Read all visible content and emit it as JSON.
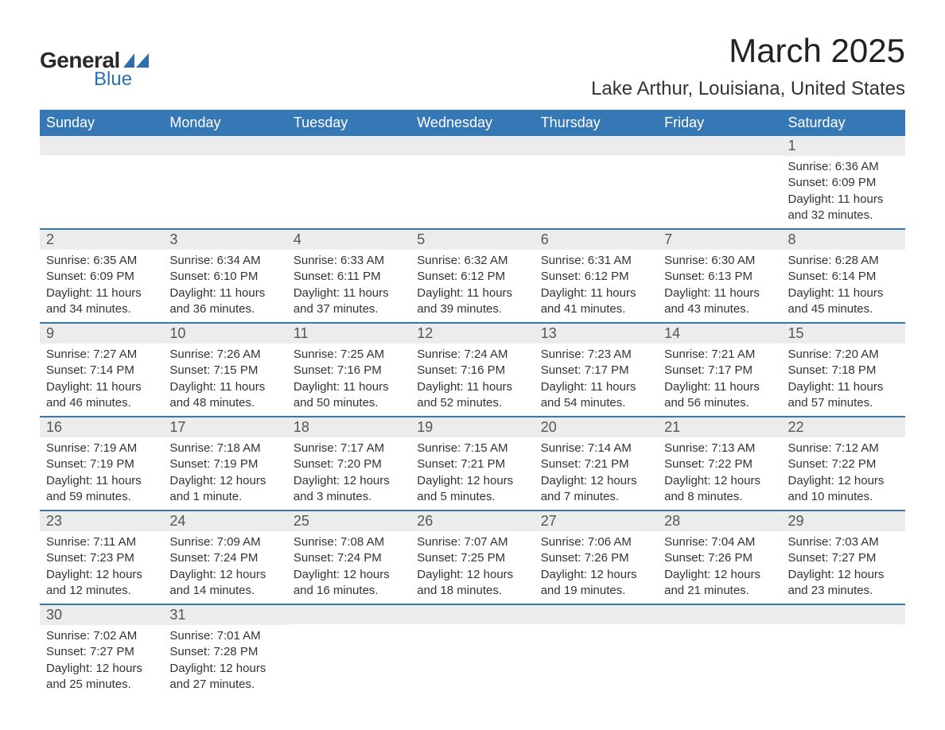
{
  "logo": {
    "text_general": "General",
    "text_blue": "Blue",
    "accent_color": "#2c6fb0"
  },
  "header": {
    "month_title": "March 2025",
    "location": "Lake Arthur, Louisiana, United States"
  },
  "styling": {
    "header_bg": "#3678b5",
    "header_text": "#ffffff",
    "daynum_bg": "#ececec",
    "row_divider": "#3678b5",
    "body_text": "#333333",
    "font_family": "Arial",
    "month_title_fontsize": 42,
    "location_fontsize": 24,
    "weekday_fontsize": 18,
    "cell_fontsize": 15
  },
  "weekdays": [
    "Sunday",
    "Monday",
    "Tuesday",
    "Wednesday",
    "Thursday",
    "Friday",
    "Saturday"
  ],
  "weeks": [
    [
      null,
      null,
      null,
      null,
      null,
      null,
      {
        "n": "1",
        "sunrise": "6:36 AM",
        "sunset": "6:09 PM",
        "daylight": "11 hours and 32 minutes."
      }
    ],
    [
      {
        "n": "2",
        "sunrise": "6:35 AM",
        "sunset": "6:09 PM",
        "daylight": "11 hours and 34 minutes."
      },
      {
        "n": "3",
        "sunrise": "6:34 AM",
        "sunset": "6:10 PM",
        "daylight": "11 hours and 36 minutes."
      },
      {
        "n": "4",
        "sunrise": "6:33 AM",
        "sunset": "6:11 PM",
        "daylight": "11 hours and 37 minutes."
      },
      {
        "n": "5",
        "sunrise": "6:32 AM",
        "sunset": "6:12 PM",
        "daylight": "11 hours and 39 minutes."
      },
      {
        "n": "6",
        "sunrise": "6:31 AM",
        "sunset": "6:12 PM",
        "daylight": "11 hours and 41 minutes."
      },
      {
        "n": "7",
        "sunrise": "6:30 AM",
        "sunset": "6:13 PM",
        "daylight": "11 hours and 43 minutes."
      },
      {
        "n": "8",
        "sunrise": "6:28 AM",
        "sunset": "6:14 PM",
        "daylight": "11 hours and 45 minutes."
      }
    ],
    [
      {
        "n": "9",
        "sunrise": "7:27 AM",
        "sunset": "7:14 PM",
        "daylight": "11 hours and 46 minutes."
      },
      {
        "n": "10",
        "sunrise": "7:26 AM",
        "sunset": "7:15 PM",
        "daylight": "11 hours and 48 minutes."
      },
      {
        "n": "11",
        "sunrise": "7:25 AM",
        "sunset": "7:16 PM",
        "daylight": "11 hours and 50 minutes."
      },
      {
        "n": "12",
        "sunrise": "7:24 AM",
        "sunset": "7:16 PM",
        "daylight": "11 hours and 52 minutes."
      },
      {
        "n": "13",
        "sunrise": "7:23 AM",
        "sunset": "7:17 PM",
        "daylight": "11 hours and 54 minutes."
      },
      {
        "n": "14",
        "sunrise": "7:21 AM",
        "sunset": "7:17 PM",
        "daylight": "11 hours and 56 minutes."
      },
      {
        "n": "15",
        "sunrise": "7:20 AM",
        "sunset": "7:18 PM",
        "daylight": "11 hours and 57 minutes."
      }
    ],
    [
      {
        "n": "16",
        "sunrise": "7:19 AM",
        "sunset": "7:19 PM",
        "daylight": "11 hours and 59 minutes."
      },
      {
        "n": "17",
        "sunrise": "7:18 AM",
        "sunset": "7:19 PM",
        "daylight": "12 hours and 1 minute."
      },
      {
        "n": "18",
        "sunrise": "7:17 AM",
        "sunset": "7:20 PM",
        "daylight": "12 hours and 3 minutes."
      },
      {
        "n": "19",
        "sunrise": "7:15 AM",
        "sunset": "7:21 PM",
        "daylight": "12 hours and 5 minutes."
      },
      {
        "n": "20",
        "sunrise": "7:14 AM",
        "sunset": "7:21 PM",
        "daylight": "12 hours and 7 minutes."
      },
      {
        "n": "21",
        "sunrise": "7:13 AM",
        "sunset": "7:22 PM",
        "daylight": "12 hours and 8 minutes."
      },
      {
        "n": "22",
        "sunrise": "7:12 AM",
        "sunset": "7:22 PM",
        "daylight": "12 hours and 10 minutes."
      }
    ],
    [
      {
        "n": "23",
        "sunrise": "7:11 AM",
        "sunset": "7:23 PM",
        "daylight": "12 hours and 12 minutes."
      },
      {
        "n": "24",
        "sunrise": "7:09 AM",
        "sunset": "7:24 PM",
        "daylight": "12 hours and 14 minutes."
      },
      {
        "n": "25",
        "sunrise": "7:08 AM",
        "sunset": "7:24 PM",
        "daylight": "12 hours and 16 minutes."
      },
      {
        "n": "26",
        "sunrise": "7:07 AM",
        "sunset": "7:25 PM",
        "daylight": "12 hours and 18 minutes."
      },
      {
        "n": "27",
        "sunrise": "7:06 AM",
        "sunset": "7:26 PM",
        "daylight": "12 hours and 19 minutes."
      },
      {
        "n": "28",
        "sunrise": "7:04 AM",
        "sunset": "7:26 PM",
        "daylight": "12 hours and 21 minutes."
      },
      {
        "n": "29",
        "sunrise": "7:03 AM",
        "sunset": "7:27 PM",
        "daylight": "12 hours and 23 minutes."
      }
    ],
    [
      {
        "n": "30",
        "sunrise": "7:02 AM",
        "sunset": "7:27 PM",
        "daylight": "12 hours and 25 minutes."
      },
      {
        "n": "31",
        "sunrise": "7:01 AM",
        "sunset": "7:28 PM",
        "daylight": "12 hours and 27 minutes."
      },
      null,
      null,
      null,
      null,
      null
    ]
  ],
  "labels": {
    "sunrise": "Sunrise:",
    "sunset": "Sunset:",
    "daylight": "Daylight:"
  }
}
